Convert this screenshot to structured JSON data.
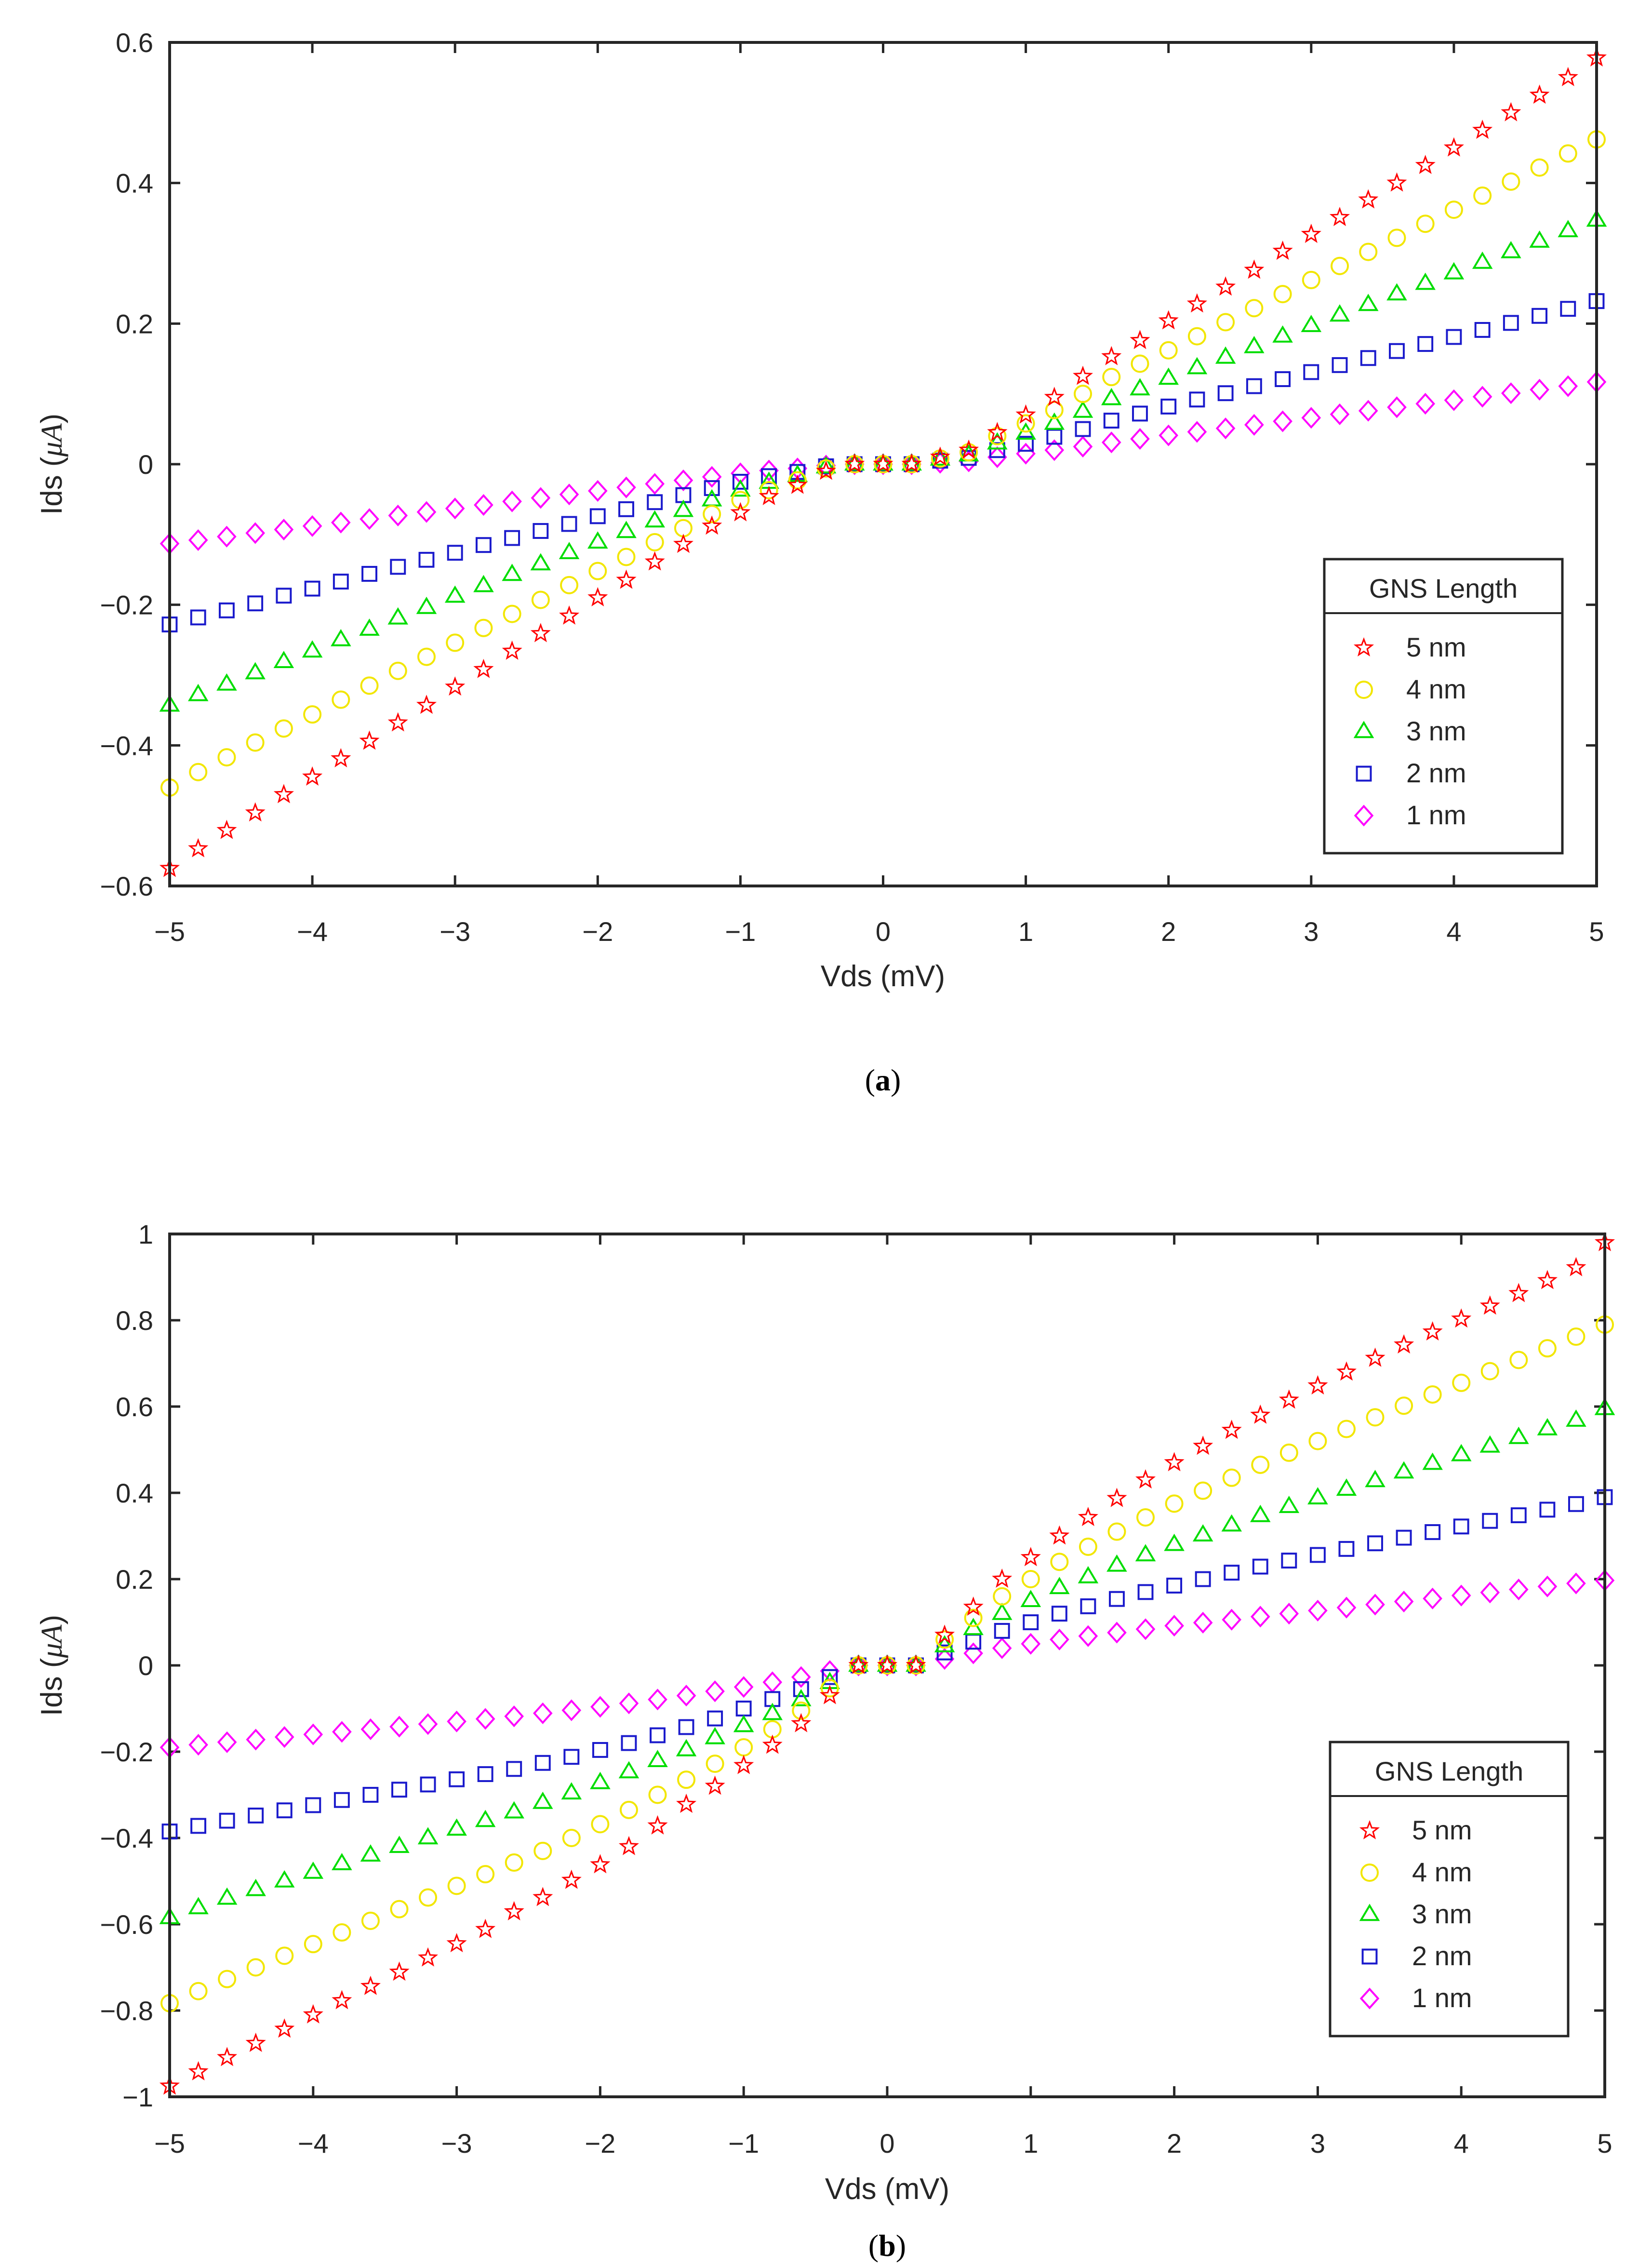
{
  "chart_data": [
    {
      "type": "scatter",
      "caption_prefix": "(",
      "caption": "a",
      "caption_suffix": ")",
      "xlabel": "Vds (mV)",
      "ylabel_pre": "Ids (",
      "ylabel_sym": "μA",
      "ylabel_post": ")",
      "xlim": [
        -5,
        5
      ],
      "ylim": [
        -0.6,
        0.6
      ],
      "xticks": [
        -5,
        -4,
        -3,
        -2,
        -1,
        0,
        1,
        2,
        3,
        4,
        5
      ],
      "xtick_labels": [
        "−5",
        "−4",
        "−3",
        "−2",
        "−1",
        "0",
        "1",
        "2",
        "3",
        "4",
        "5"
      ],
      "yticks": [
        -0.6,
        -0.4,
        -0.2,
        0,
        0.2,
        0.4,
        0.6
      ],
      "ytick_labels": [
        "−0.6",
        "−0.4",
        "−0.2",
        "0",
        "0.2",
        "0.4",
        "0.6"
      ],
      "grid": false,
      "legend": {
        "title": "GNS Length",
        "position": "lower-right"
      },
      "x": [
        -5.0,
        -4.8,
        -4.6,
        -4.4,
        -4.2,
        -4.0,
        -3.8,
        -3.6,
        -3.4,
        -3.2,
        -3.0,
        -2.8,
        -2.6,
        -2.4,
        -2.2,
        -2.0,
        -1.8,
        -1.6,
        -1.4,
        -1.2,
        -1.0,
        -0.8,
        -0.6,
        -0.4,
        -0.2,
        0.0,
        0.2,
        0.4,
        0.6,
        0.8,
        1.0,
        1.2,
        1.4,
        1.6,
        1.8,
        2.0,
        2.2,
        2.4,
        2.6,
        2.8,
        3.0,
        3.2,
        3.4,
        3.6,
        3.8,
        4.0,
        4.2,
        4.4,
        4.6,
        4.8,
        5.0
      ],
      "series": [
        {
          "name": "5 nm",
          "marker": "star",
          "color": "#ff0000",
          "values": [
            -0.575,
            -0.547,
            -0.521,
            -0.496,
            -0.47,
            -0.445,
            -0.419,
            -0.394,
            -0.368,
            -0.343,
            -0.317,
            -0.292,
            -0.266,
            -0.241,
            -0.216,
            -0.19,
            -0.165,
            -0.139,
            -0.114,
            -0.088,
            -0.069,
            -0.046,
            -0.03,
            -0.01,
            0.0,
            0.0,
            0.0,
            0.01,
            0.02,
            0.045,
            0.07,
            0.095,
            0.125,
            0.153,
            0.176,
            0.204,
            0.228,
            0.252,
            0.276,
            0.303,
            0.327,
            0.351,
            0.376,
            0.4,
            0.425,
            0.45,
            0.475,
            0.5,
            0.525,
            0.55,
            0.578
          ]
        },
        {
          "name": "4 nm",
          "marker": "circle",
          "color": "#f2e600",
          "values": [
            -0.46,
            -0.438,
            -0.417,
            -0.396,
            -0.376,
            -0.356,
            -0.335,
            -0.315,
            -0.294,
            -0.274,
            -0.254,
            -0.233,
            -0.213,
            -0.193,
            -0.172,
            -0.152,
            -0.132,
            -0.111,
            -0.091,
            -0.071,
            -0.051,
            -0.037,
            -0.023,
            -0.006,
            0.0,
            0.0,
            0.0,
            0.008,
            0.017,
            0.04,
            0.058,
            0.077,
            0.1,
            0.124,
            0.143,
            0.162,
            0.182,
            0.202,
            0.222,
            0.242,
            0.262,
            0.282,
            0.302,
            0.322,
            0.342,
            0.362,
            0.382,
            0.402,
            0.422,
            0.442,
            0.462
          ]
        },
        {
          "name": "3 nm",
          "marker": "triangle",
          "color": "#00dd00",
          "values": [
            -0.343,
            -0.328,
            -0.313,
            -0.297,
            -0.281,
            -0.266,
            -0.25,
            -0.235,
            -0.219,
            -0.204,
            -0.188,
            -0.173,
            -0.157,
            -0.142,
            -0.126,
            -0.111,
            -0.096,
            -0.081,
            -0.066,
            -0.051,
            -0.037,
            -0.026,
            -0.016,
            -0.004,
            0.0,
            0.0,
            0.0,
            0.007,
            0.013,
            0.03,
            0.044,
            0.058,
            0.075,
            0.093,
            0.107,
            0.122,
            0.137,
            0.152,
            0.167,
            0.182,
            0.197,
            0.212,
            0.227,
            0.242,
            0.257,
            0.272,
            0.287,
            0.302,
            0.317,
            0.332,
            0.347
          ]
        },
        {
          "name": "2 nm",
          "marker": "square",
          "color": "#1a1acc",
          "values": [
            -0.228,
            -0.218,
            -0.208,
            -0.198,
            -0.187,
            -0.177,
            -0.167,
            -0.156,
            -0.146,
            -0.136,
            -0.126,
            -0.115,
            -0.105,
            -0.095,
            -0.085,
            -0.074,
            -0.064,
            -0.054,
            -0.044,
            -0.034,
            -0.025,
            -0.017,
            -0.011,
            -0.003,
            0.0,
            0.0,
            0.0,
            0.005,
            0.009,
            0.02,
            0.029,
            0.039,
            0.05,
            0.062,
            0.072,
            0.082,
            0.092,
            0.101,
            0.111,
            0.121,
            0.131,
            0.141,
            0.151,
            0.161,
            0.171,
            0.181,
            0.191,
            0.201,
            0.211,
            0.221,
            0.232
          ]
        },
        {
          "name": "1 nm",
          "marker": "diamond",
          "color": "#ff00ff",
          "values": [
            -0.113,
            -0.108,
            -0.103,
            -0.098,
            -0.093,
            -0.088,
            -0.083,
            -0.078,
            -0.073,
            -0.068,
            -0.063,
            -0.058,
            -0.053,
            -0.048,
            -0.043,
            -0.038,
            -0.033,
            -0.028,
            -0.023,
            -0.018,
            -0.013,
            -0.009,
            -0.006,
            -0.002,
            0.0,
            0.0,
            0.0,
            0.002,
            0.004,
            0.01,
            0.015,
            0.02,
            0.025,
            0.031,
            0.036,
            0.041,
            0.046,
            0.051,
            0.056,
            0.061,
            0.066,
            0.071,
            0.076,
            0.081,
            0.086,
            0.091,
            0.096,
            0.101,
            0.106,
            0.111,
            0.117
          ]
        }
      ]
    },
    {
      "type": "scatter",
      "caption_prefix": "(",
      "caption": "b",
      "caption_suffix": ")",
      "xlabel": "Vds (mV)",
      "ylabel_pre": "Ids (",
      "ylabel_sym": "μA",
      "ylabel_post": ")",
      "xlim": [
        -5,
        5
      ],
      "ylim": [
        -1,
        1
      ],
      "xticks": [
        -5,
        -4,
        -3,
        -2,
        -1,
        0,
        1,
        2,
        3,
        4,
        5
      ],
      "xtick_labels": [
        "−5",
        "−4",
        "−3",
        "−2",
        "−1",
        "0",
        "1",
        "2",
        "3",
        "4",
        "5"
      ],
      "yticks": [
        -1,
        -0.8,
        -0.6,
        -0.4,
        -0.2,
        0,
        0.2,
        0.4,
        0.6,
        0.8,
        1
      ],
      "ytick_labels": [
        "−1",
        "−0.8",
        "−0.6",
        "−0.4",
        "−0.2",
        "0",
        "0.2",
        "0.4",
        "0.6",
        "0.8",
        "1"
      ],
      "grid": false,
      "legend": {
        "title": "GNS Length",
        "position": "lower-right"
      },
      "x": [
        -5.0,
        -4.8,
        -4.6,
        -4.4,
        -4.2,
        -4.0,
        -3.8,
        -3.6,
        -3.4,
        -3.2,
        -3.0,
        -2.8,
        -2.6,
        -2.4,
        -2.2,
        -2.0,
        -1.8,
        -1.6,
        -1.4,
        -1.2,
        -1.0,
        -0.8,
        -0.6,
        -0.4,
        -0.2,
        0.0,
        0.2,
        0.4,
        0.6,
        0.8,
        1.0,
        1.2,
        1.4,
        1.6,
        1.8,
        2.0,
        2.2,
        2.4,
        2.6,
        2.8,
        3.0,
        3.2,
        3.4,
        3.6,
        3.8,
        4.0,
        4.2,
        4.4,
        4.6,
        4.8,
        5.0
      ],
      "series": [
        {
          "name": "5 nm",
          "marker": "star",
          "color": "#ff0000",
          "values": [
            -0.975,
            -0.942,
            -0.909,
            -0.876,
            -0.843,
            -0.81,
            -0.777,
            -0.744,
            -0.711,
            -0.678,
            -0.645,
            -0.612,
            -0.571,
            -0.538,
            -0.498,
            -0.462,
            -0.42,
            -0.372,
            -0.322,
            -0.28,
            -0.232,
            -0.185,
            -0.135,
            -0.07,
            0.0,
            0.0,
            0.0,
            0.07,
            0.135,
            0.2,
            0.25,
            0.3,
            0.343,
            0.387,
            0.43,
            0.47,
            0.508,
            0.545,
            0.58,
            0.615,
            0.648,
            0.68,
            0.712,
            0.743,
            0.773,
            0.803,
            0.833,
            0.862,
            0.892,
            0.922,
            0.98
          ]
        },
        {
          "name": "4 nm",
          "marker": "circle",
          "color": "#f2e600",
          "values": [
            -0.783,
            -0.755,
            -0.727,
            -0.7,
            -0.673,
            -0.646,
            -0.619,
            -0.592,
            -0.565,
            -0.538,
            -0.511,
            -0.484,
            -0.457,
            -0.43,
            -0.4,
            -0.368,
            -0.335,
            -0.3,
            -0.265,
            -0.228,
            -0.19,
            -0.148,
            -0.105,
            -0.053,
            0.0,
            0.0,
            0.0,
            0.06,
            0.11,
            0.16,
            0.2,
            0.24,
            0.275,
            0.31,
            0.343,
            0.375,
            0.405,
            0.435,
            0.465,
            0.493,
            0.52,
            0.548,
            0.575,
            0.602,
            0.628,
            0.655,
            0.682,
            0.708,
            0.735,
            0.762,
            0.79
          ]
        },
        {
          "name": "3 nm",
          "marker": "triangle",
          "color": "#00dd00",
          "values": [
            -0.585,
            -0.562,
            -0.54,
            -0.52,
            -0.5,
            -0.48,
            -0.46,
            -0.44,
            -0.42,
            -0.4,
            -0.38,
            -0.36,
            -0.34,
            -0.318,
            -0.296,
            -0.272,
            -0.247,
            -0.221,
            -0.196,
            -0.168,
            -0.14,
            -0.112,
            -0.08,
            -0.04,
            0.0,
            0.0,
            0.0,
            0.045,
            0.085,
            0.12,
            0.15,
            0.18,
            0.205,
            0.232,
            0.256,
            0.28,
            0.302,
            0.325,
            0.347,
            0.368,
            0.388,
            0.408,
            0.428,
            0.448,
            0.468,
            0.488,
            0.508,
            0.528,
            0.548,
            0.568,
            0.595
          ]
        },
        {
          "name": "2 nm",
          "marker": "square",
          "color": "#1a1acc",
          "values": [
            -0.385,
            -0.372,
            -0.36,
            -0.348,
            -0.336,
            -0.324,
            -0.312,
            -0.3,
            -0.288,
            -0.276,
            -0.264,
            -0.252,
            -0.24,
            -0.226,
            -0.212,
            -0.196,
            -0.18,
            -0.162,
            -0.143,
            -0.123,
            -0.1,
            -0.078,
            -0.055,
            -0.027,
            0.0,
            0.0,
            0.0,
            0.03,
            0.055,
            0.08,
            0.1,
            0.12,
            0.137,
            0.154,
            0.17,
            0.185,
            0.2,
            0.215,
            0.229,
            0.243,
            0.256,
            0.27,
            0.283,
            0.296,
            0.309,
            0.322,
            0.335,
            0.348,
            0.361,
            0.374,
            0.39
          ]
        },
        {
          "name": "1 nm",
          "marker": "diamond",
          "color": "#ff00ff",
          "values": [
            -0.19,
            -0.184,
            -0.178,
            -0.172,
            -0.166,
            -0.16,
            -0.154,
            -0.148,
            -0.142,
            -0.136,
            -0.13,
            -0.124,
            -0.118,
            -0.111,
            -0.104,
            -0.096,
            -0.088,
            -0.079,
            -0.07,
            -0.06,
            -0.05,
            -0.039,
            -0.027,
            -0.013,
            0.0,
            0.0,
            0.0,
            0.015,
            0.028,
            0.04,
            0.05,
            0.06,
            0.068,
            0.076,
            0.084,
            0.092,
            0.099,
            0.106,
            0.113,
            0.12,
            0.127,
            0.134,
            0.141,
            0.148,
            0.155,
            0.162,
            0.169,
            0.176,
            0.183,
            0.19,
            0.197
          ]
        }
      ]
    }
  ]
}
